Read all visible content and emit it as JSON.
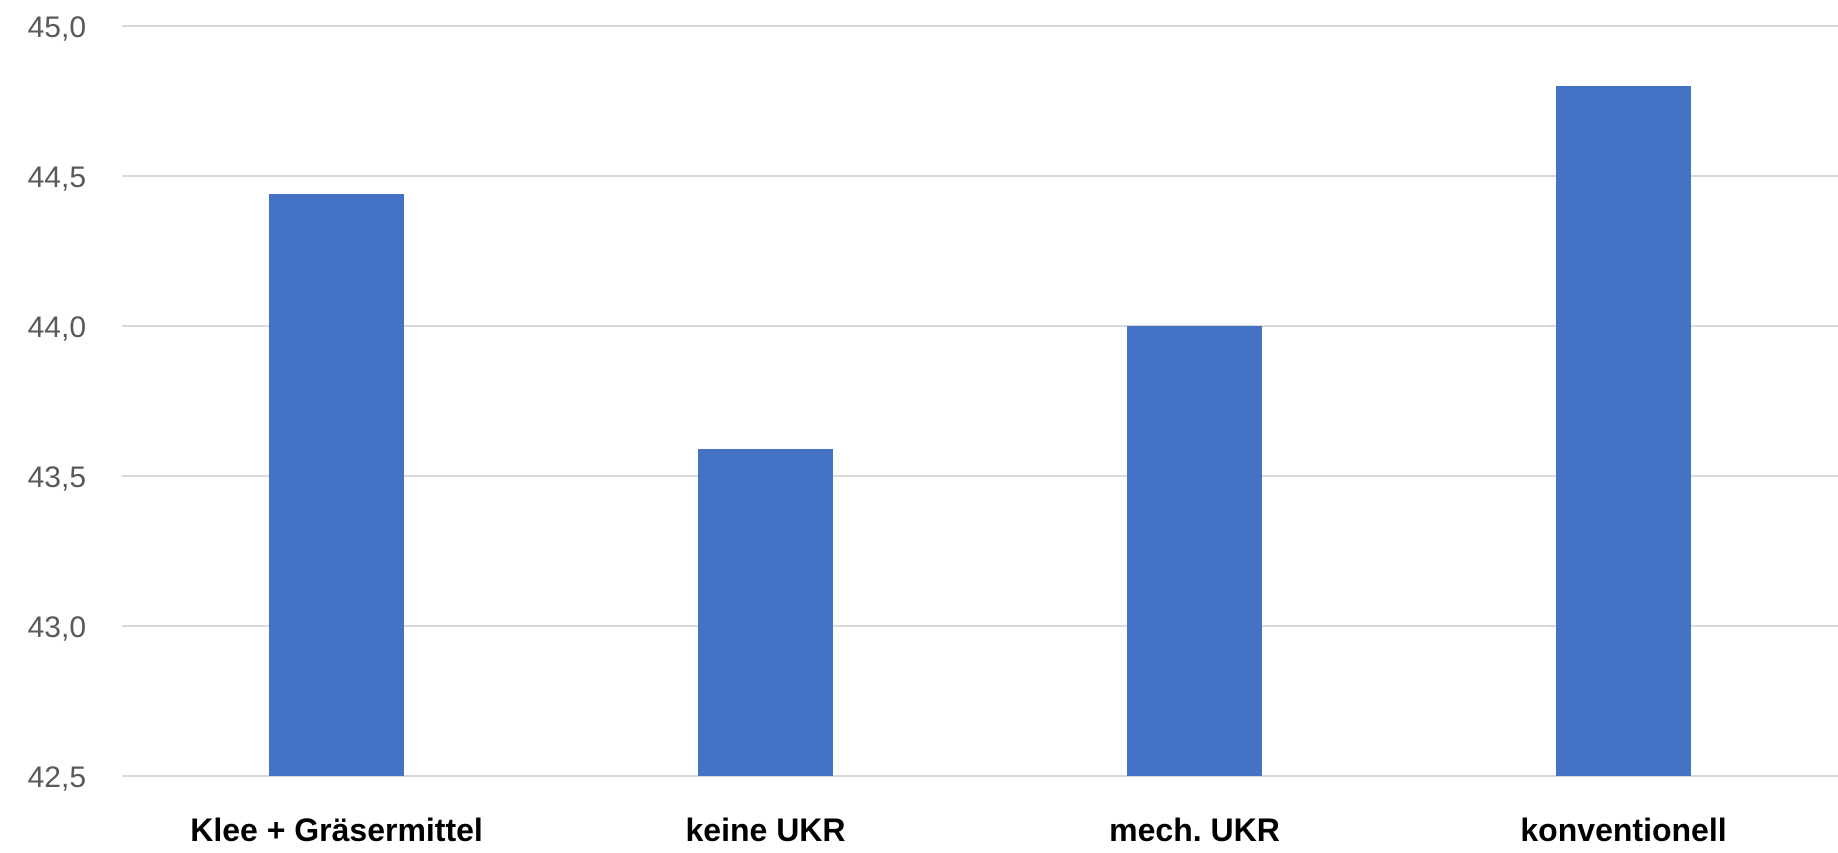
{
  "chart_data": {
    "type": "bar",
    "categories": [
      "Klee + Gräsermittel",
      "keine UKR",
      "mech. UKR",
      "konventionell"
    ],
    "values": [
      44.44,
      43.59,
      44.0,
      44.8
    ],
    "ylim": [
      42.5,
      45.0
    ],
    "yticks": [
      "42,5",
      "43,0",
      "43,5",
      "44,0",
      "44,5",
      "45,0"
    ],
    "ytick_values": [
      42.5,
      43.0,
      43.5,
      44.0,
      44.5,
      45.0
    ],
    "grid": true,
    "legend": "none",
    "title": "",
    "xlabel": "",
    "ylabel": "",
    "bar_color": "#4472c4",
    "grid_color": "#d9d9d9"
  }
}
